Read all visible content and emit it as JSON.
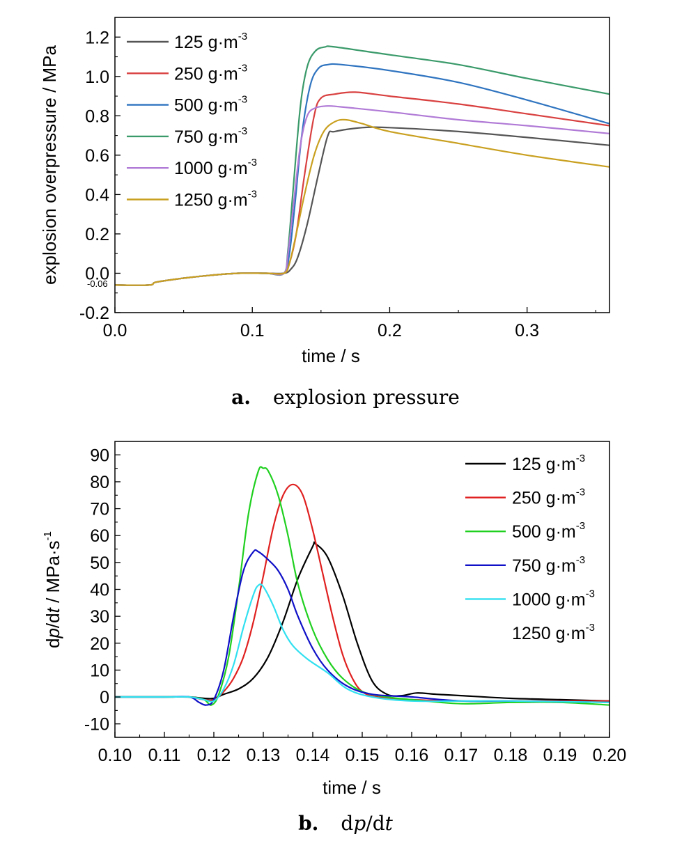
{
  "chart_data": [
    {
      "type": "line",
      "caption_label": "a.",
      "caption_text": "explosion pressure",
      "xlabel": "time / s",
      "ylabel": "explosion overpressure / MPa",
      "xlim": [
        0,
        0.36
      ],
      "ylim": [
        -0.2,
        1.3
      ],
      "xticks": [
        "0.0",
        "0.1",
        "0.2",
        "0.3"
      ],
      "yticks": [
        "-0.2",
        "0.0",
        "0.2",
        "0.4",
        "0.6",
        "0.8",
        "1.0",
        "1.2"
      ],
      "annotation": "-0.06",
      "legend_position": "top-left",
      "unit_text": "g·m",
      "unit_exp": "-3",
      "series": [
        {
          "name": "125",
          "color": "#555555",
          "x": [
            0,
            0.025,
            0.03,
            0.05,
            0.07,
            0.09,
            0.11,
            0.123,
            0.128,
            0.133,
            0.14,
            0.148,
            0.155,
            0.16,
            0.18,
            0.2,
            0.25,
            0.3,
            0.36
          ],
          "y": [
            -0.06,
            -0.06,
            -0.045,
            -0.025,
            -0.01,
            0.0,
            0.0,
            0.0,
            0.02,
            0.08,
            0.25,
            0.5,
            0.7,
            0.72,
            0.74,
            0.74,
            0.72,
            0.69,
            0.65
          ]
        },
        {
          "name": "250",
          "color": "#d94040",
          "x": [
            0,
            0.025,
            0.03,
            0.05,
            0.07,
            0.09,
            0.11,
            0.123,
            0.127,
            0.132,
            0.138,
            0.145,
            0.15,
            0.16,
            0.175,
            0.2,
            0.25,
            0.3,
            0.36
          ],
          "y": [
            -0.06,
            -0.06,
            -0.045,
            -0.025,
            -0.01,
            0.0,
            0.0,
            0.0,
            0.05,
            0.2,
            0.5,
            0.8,
            0.89,
            0.91,
            0.92,
            0.9,
            0.86,
            0.81,
            0.75
          ]
        },
        {
          "name": "500",
          "color": "#2f74c0",
          "x": [
            0,
            0.025,
            0.03,
            0.05,
            0.07,
            0.09,
            0.11,
            0.123,
            0.127,
            0.131,
            0.136,
            0.142,
            0.148,
            0.155,
            0.165,
            0.2,
            0.25,
            0.3,
            0.36
          ],
          "y": [
            -0.06,
            -0.06,
            -0.045,
            -0.025,
            -0.01,
            0.0,
            0.0,
            0.0,
            0.1,
            0.35,
            0.7,
            0.95,
            1.04,
            1.06,
            1.06,
            1.03,
            0.97,
            0.88,
            0.76
          ]
        },
        {
          "name": "750",
          "color": "#3a9a6a",
          "x": [
            0,
            0.025,
            0.03,
            0.05,
            0.07,
            0.09,
            0.11,
            0.123,
            0.126,
            0.13,
            0.135,
            0.14,
            0.146,
            0.153,
            0.16,
            0.2,
            0.25,
            0.3,
            0.36
          ],
          "y": [
            -0.06,
            -0.06,
            -0.045,
            -0.025,
            -0.01,
            0.0,
            0.0,
            0.0,
            0.12,
            0.45,
            0.85,
            1.05,
            1.13,
            1.15,
            1.15,
            1.11,
            1.06,
            0.99,
            0.91
          ]
        },
        {
          "name": "1000",
          "color": "#b07ad6",
          "x": [
            0,
            0.025,
            0.03,
            0.05,
            0.07,
            0.09,
            0.11,
            0.123,
            0.126,
            0.13,
            0.135,
            0.14,
            0.146,
            0.155,
            0.165,
            0.2,
            0.25,
            0.3,
            0.36
          ],
          "y": [
            -0.06,
            -0.06,
            -0.045,
            -0.025,
            -0.01,
            0.0,
            0.0,
            0.0,
            0.1,
            0.35,
            0.65,
            0.8,
            0.84,
            0.85,
            0.845,
            0.82,
            0.78,
            0.75,
            0.71
          ]
        },
        {
          "name": "1250",
          "color": "#c9a020",
          "x": [
            0,
            0.025,
            0.03,
            0.05,
            0.07,
            0.09,
            0.11,
            0.123,
            0.127,
            0.132,
            0.138,
            0.145,
            0.152,
            0.16,
            0.168,
            0.18,
            0.2,
            0.25,
            0.3,
            0.36
          ],
          "y": [
            -0.06,
            -0.06,
            -0.045,
            -0.025,
            -0.01,
            0.0,
            0.0,
            0.0,
            0.05,
            0.2,
            0.4,
            0.6,
            0.72,
            0.77,
            0.78,
            0.76,
            0.72,
            0.66,
            0.6,
            0.54
          ]
        }
      ]
    },
    {
      "type": "line",
      "caption_label": "b.",
      "caption_text_pre": "d",
      "caption_text_p": "p",
      "caption_text_mid": "/d",
      "caption_text_t": "t",
      "xlabel": "time / s",
      "ylabel_pre": "d",
      "ylabel_p": "p",
      "ylabel_mid": "/d",
      "ylabel_t": "t",
      "ylabel_post": " / MPa·s",
      "ylabel_exp": "-1",
      "xlim": [
        0.1,
        0.2
      ],
      "ylim": [
        -15,
        95
      ],
      "xticks": [
        "0.10",
        "0.11",
        "0.12",
        "0.13",
        "0.14",
        "0.15",
        "0.16",
        "0.17",
        "0.18",
        "0.19",
        "0.20"
      ],
      "yticks": [
        "-10",
        "0",
        "10",
        "20",
        "30",
        "40",
        "50",
        "60",
        "70",
        "80",
        "90"
      ],
      "legend_position": "top-right",
      "unit_text": "g·m",
      "unit_exp": "-3",
      "series": [
        {
          "name": "125",
          "color": "#000000",
          "x": [
            0.1,
            0.11,
            0.115,
            0.118,
            0.12,
            0.122,
            0.125,
            0.128,
            0.131,
            0.134,
            0.137,
            0.14,
            0.1405,
            0.143,
            0.146,
            0.149,
            0.152,
            0.155,
            0.158,
            0.161,
            0.165,
            0.17,
            0.18,
            0.19,
            0.2
          ],
          "y": [
            0,
            0,
            0,
            -0.5,
            -0.5,
            1,
            3,
            7,
            15,
            28,
            44,
            56,
            57,
            52,
            38,
            20,
            6,
            1,
            0.5,
            1.5,
            1,
            0.5,
            -0.5,
            -1,
            -1.5
          ]
        },
        {
          "name": "250",
          "color": "#e02020",
          "x": [
            0.1,
            0.11,
            0.115,
            0.118,
            0.12,
            0.122,
            0.124,
            0.126,
            0.128,
            0.13,
            0.132,
            0.134,
            0.136,
            0.138,
            0.14,
            0.142,
            0.144,
            0.146,
            0.148,
            0.15,
            0.153,
            0.16,
            0.17,
            0.18,
            0.2
          ],
          "y": [
            0,
            0,
            0,
            -1,
            -1,
            2,
            7,
            15,
            28,
            45,
            63,
            75,
            79,
            75,
            62,
            46,
            30,
            16,
            7,
            2,
            0,
            -1,
            -1.5,
            -1.5,
            -1.5
          ]
        },
        {
          "name": "500",
          "color": "#20d020",
          "x": [
            0.1,
            0.11,
            0.115,
            0.118,
            0.1195,
            0.121,
            0.123,
            0.125,
            0.127,
            0.129,
            0.13,
            0.131,
            0.133,
            0.135,
            0.137,
            0.14,
            0.143,
            0.146,
            0.15,
            0.155,
            0.16,
            0.17,
            0.18,
            0.19,
            0.2
          ],
          "y": [
            0,
            0,
            0,
            -1,
            -3,
            1,
            15,
            40,
            68,
            84,
            85,
            84,
            75,
            60,
            42,
            25,
            14,
            7,
            2,
            0,
            -1,
            -2.5,
            -2,
            -2,
            -3
          ]
        },
        {
          "name": "750",
          "color": "#1010c8",
          "x": [
            0.1,
            0.11,
            0.115,
            0.117,
            0.1185,
            0.12,
            0.122,
            0.124,
            0.126,
            0.128,
            0.129,
            0.131,
            0.133,
            0.135,
            0.137,
            0.14,
            0.143,
            0.147,
            0.152,
            0.16,
            0.17,
            0.18,
            0.2
          ],
          "y": [
            0,
            0,
            0,
            -2,
            -3,
            -1,
            10,
            30,
            47,
            54,
            54,
            51,
            47,
            40,
            30,
            18,
            10,
            4,
            1,
            0,
            -1.5,
            -1.5,
            -2
          ]
        },
        {
          "name": "1000",
          "color": "#30e0f0",
          "x": [
            0.1,
            0.11,
            0.115,
            0.118,
            0.12,
            0.122,
            0.124,
            0.126,
            0.128,
            0.129,
            0.13,
            0.132,
            0.134,
            0.136,
            0.139,
            0.143,
            0.147,
            0.152,
            0.16,
            0.17,
            0.18,
            0.2
          ],
          "y": [
            0,
            0,
            0,
            -1,
            -1.5,
            3,
            12,
            26,
            38,
            41.5,
            41,
            34,
            25,
            19,
            14,
            9,
            3,
            0,
            -1.5,
            -1.5,
            -1.5,
            -2
          ]
        },
        {
          "name": "1250",
          "color": "#ffffff",
          "x": [],
          "y": []
        }
      ]
    }
  ]
}
